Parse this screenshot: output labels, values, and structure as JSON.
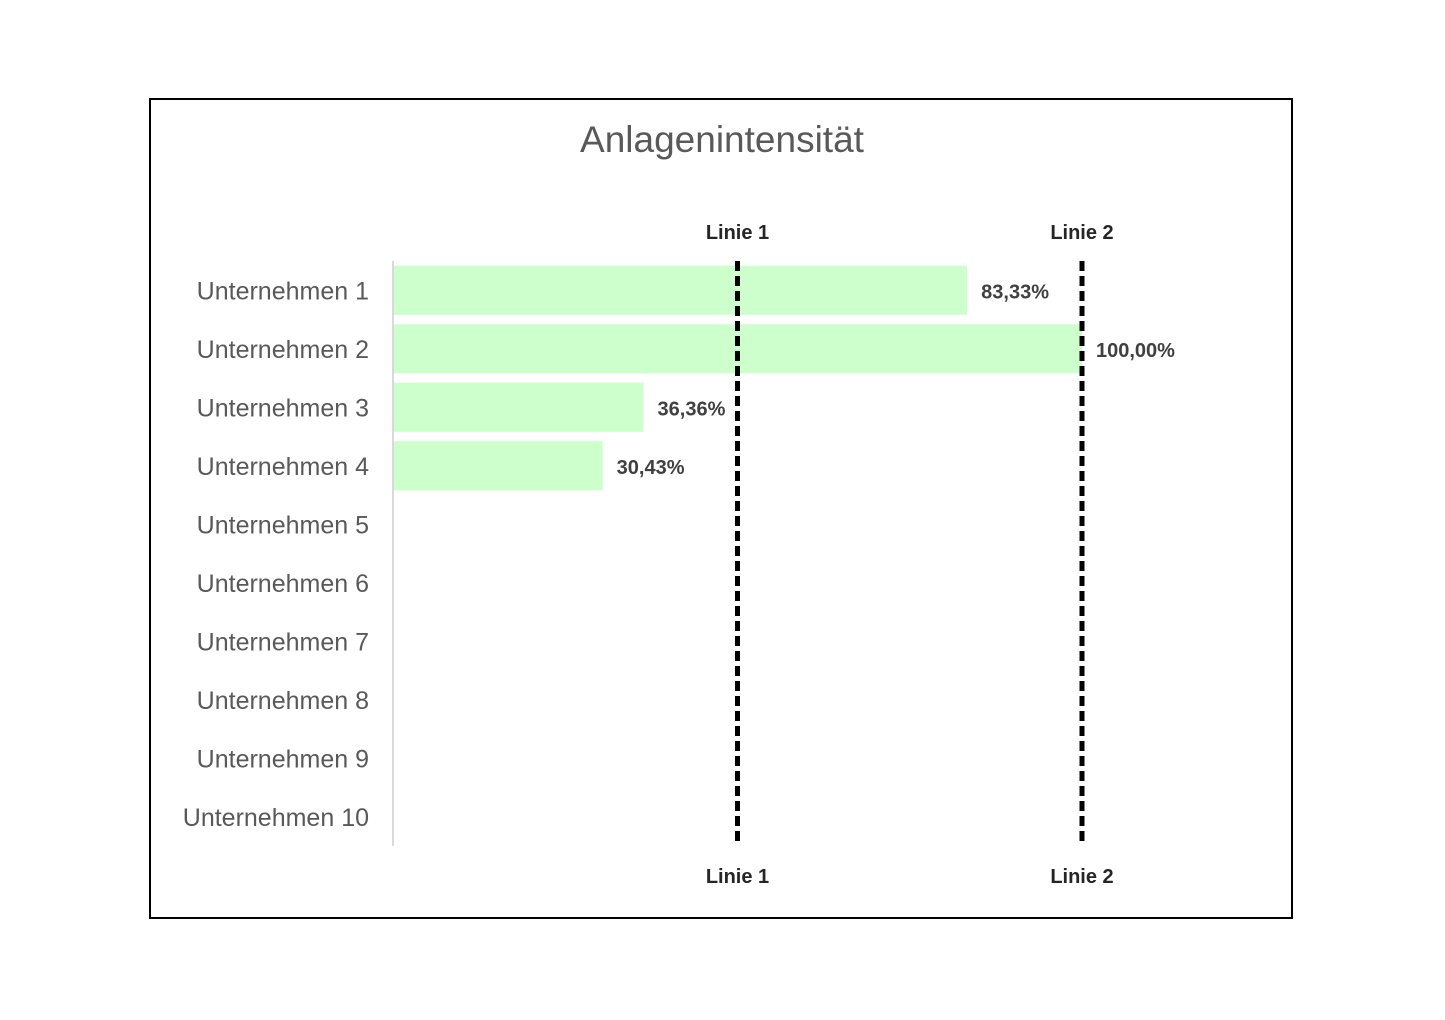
{
  "chart_data": {
    "type": "bar",
    "orientation": "horizontal",
    "title": "Anlagenintensität",
    "categories": [
      "Unternehmen 1",
      "Unternehmen 2",
      "Unternehmen 3",
      "Unternehmen 4",
      "Unternehmen 5",
      "Unternehmen 6",
      "Unternehmen 7",
      "Unternehmen 8",
      "Unternehmen 9",
      "Unternehmen 10"
    ],
    "values": [
      83.33,
      100.0,
      36.36,
      30.43,
      null,
      null,
      null,
      null,
      null,
      null
    ],
    "data_labels": [
      "83,33%",
      "100,00%",
      "36,36%",
      "30,43%",
      "",
      "",
      "",
      "",
      "",
      ""
    ],
    "xlim": [
      0,
      100
    ],
    "bar_color": "#ccffcc",
    "reference_lines": [
      {
        "label": "Linie 1",
        "value": 50,
        "color": "#000000",
        "style": "dashed"
      },
      {
        "label": "Linie 2",
        "value": 100,
        "color": "#000000",
        "style": "dashed"
      }
    ],
    "grid": false,
    "legend": "none"
  }
}
